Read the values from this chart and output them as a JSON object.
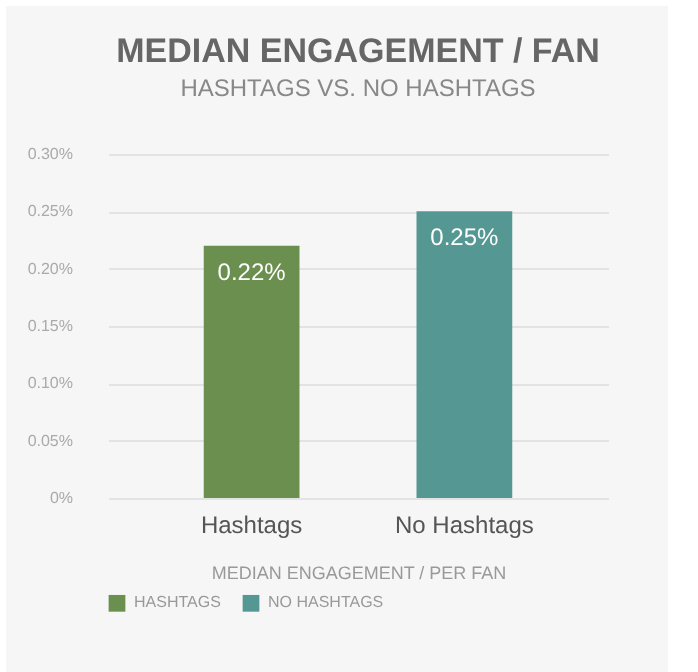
{
  "chart_data": {
    "type": "bar",
    "title": "MEDIAN ENGAGEMENT / FAN",
    "subtitle": "HASHTAGS VS. NO HASHTAGS",
    "xlabel": "MEDIAN ENGAGEMENT / PER FAN",
    "categories": [
      "Hashtags",
      "No Hashtags"
    ],
    "series": [
      {
        "name": "HASHTAGS",
        "color": "#6b8f4e",
        "values": [
          0.22,
          null
        ],
        "value_labels": [
          "0.22%",
          null
        ]
      },
      {
        "name": "NO HASHTAGS",
        "color": "#559793",
        "values": [
          null,
          0.25
        ],
        "value_labels": [
          null,
          "0.25%"
        ]
      }
    ],
    "ylim": [
      0,
      0.3
    ],
    "yticks": [
      {
        "value": 0,
        "label": "0%"
      },
      {
        "value": 0.05,
        "label": "0.05%"
      },
      {
        "value": 0.1,
        "label": "0.10%"
      },
      {
        "value": 0.15,
        "label": "0.15%"
      },
      {
        "value": 0.2,
        "label": "0.20%"
      },
      {
        "value": 0.25,
        "label": "0.25%"
      },
      {
        "value": 0.3,
        "label": "0.30%"
      }
    ],
    "grid": "y",
    "legend": "bottom"
  }
}
